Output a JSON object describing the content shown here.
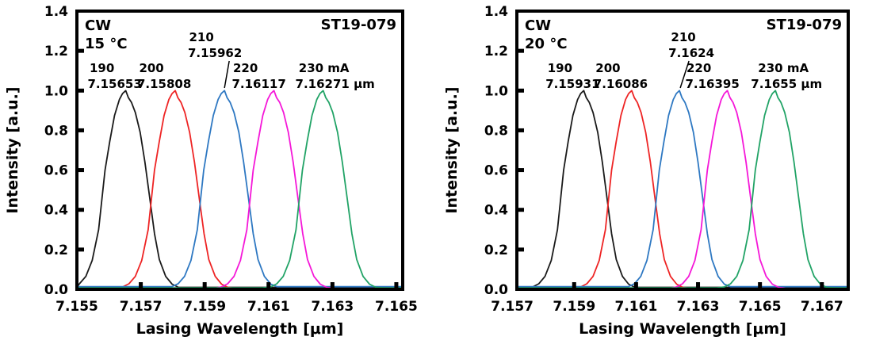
{
  "page": {
    "background": "#ffffff"
  },
  "peak_profile": [
    [
      -0.0019,
      0.004
    ],
    [
      -0.00165,
      0.012
    ],
    [
      -0.00145,
      0.028
    ],
    [
      -0.00125,
      0.065
    ],
    [
      -0.00105,
      0.145
    ],
    [
      -0.00085,
      0.3
    ],
    [
      -0.00065,
      0.6
    ],
    [
      -0.0005,
      0.745
    ],
    [
      -0.00035,
      0.875
    ],
    [
      -0.0002,
      0.955
    ],
    [
      -0.0001,
      0.985
    ],
    [
      0.0,
      1.0
    ],
    [
      8e-05,
      0.965
    ],
    [
      0.00018,
      0.94
    ],
    [
      0.0003,
      0.89
    ],
    [
      0.00045,
      0.79
    ],
    [
      0.0006,
      0.64
    ],
    [
      0.00075,
      0.46
    ],
    [
      0.0009,
      0.28
    ],
    [
      0.00105,
      0.15
    ],
    [
      0.00125,
      0.065
    ],
    [
      0.00145,
      0.026
    ],
    [
      0.00165,
      0.01
    ],
    [
      0.0019,
      0.004
    ]
  ],
  "chart_data": [
    {
      "type": "line",
      "mode": "CW",
      "temperature": "15 °C",
      "device": "ST19-079",
      "xlabel": "Lasing Wavelength [μm]",
      "ylabel": "Intensity [a.u.]",
      "xlim": [
        7.155,
        7.1652
      ],
      "ylim": [
        0.0,
        1.4
      ],
      "x_ticks": [
        7.155,
        7.157,
        7.159,
        7.161,
        7.163,
        7.165
      ],
      "x_tick_labels": [
        "7.155",
        "7.157",
        "7.159",
        "7.161",
        "7.163",
        "7.165"
      ],
      "y_ticks": [
        0.0,
        0.2,
        0.4,
        0.6,
        0.8,
        1.0,
        1.2,
        1.4
      ],
      "y_tick_labels": [
        "0.0",
        "0.2",
        "0.4",
        "0.6",
        "0.8",
        "1.0",
        "1.2",
        "1.4"
      ],
      "series": [
        {
          "name": "190 mA",
          "color": "#1a1a1a",
          "peak_um": 7.15653,
          "peak_intensity": 1.0,
          "label": [
            "190",
            "7.15653"
          ]
        },
        {
          "name": "200 mA",
          "color": "#ee2424",
          "peak_um": 7.15808,
          "peak_intensity": 1.0,
          "label": [
            "200",
            "7.15808"
          ]
        },
        {
          "name": "210 mA",
          "color": "#2e78c2",
          "peak_um": 7.15962,
          "peak_intensity": 1.0,
          "label": [
            "210",
            "7.15962"
          ],
          "label_raised": true
        },
        {
          "name": "220 mA",
          "color": "#f517d8",
          "peak_um": 7.16117,
          "peak_intensity": 1.0,
          "label": [
            "220",
            "7.16117"
          ]
        },
        {
          "name": "230 mA",
          "color": "#21a366",
          "peak_um": 7.16271,
          "peak_intensity": 1.0,
          "label": [
            "230 mA",
            "7.16271 μm"
          ]
        }
      ]
    },
    {
      "type": "line",
      "mode": "CW",
      "temperature": "20 °C",
      "device": "ST19-079",
      "xlabel": "Lasing Wavelength [μm]",
      "ylabel": "Intensity [a.u.]",
      "xlim": [
        7.15715,
        7.16785
      ],
      "ylim": [
        0.0,
        1.4
      ],
      "x_ticks": [
        7.157,
        7.159,
        7.161,
        7.163,
        7.165,
        7.167
      ],
      "x_tick_labels": [
        "7.157",
        "7.159",
        "7.161",
        "7.163",
        "7.165",
        "7.167"
      ],
      "y_ticks": [
        0.0,
        0.2,
        0.4,
        0.6,
        0.8,
        1.0,
        1.2,
        1.4
      ],
      "y_tick_labels": [
        "0.0",
        "0.2",
        "0.4",
        "0.6",
        "0.8",
        "1.0",
        "1.2",
        "1.4"
      ],
      "series": [
        {
          "name": "190 mA",
          "color": "#1a1a1a",
          "peak_um": 7.15931,
          "peak_intensity": 1.0,
          "label": [
            "190",
            "7.15931"
          ]
        },
        {
          "name": "200 mA",
          "color": "#ee2424",
          "peak_um": 7.16086,
          "peak_intensity": 1.0,
          "label": [
            "200",
            "7.16086"
          ]
        },
        {
          "name": "210 mA",
          "color": "#2e78c2",
          "peak_um": 7.1624,
          "peak_intensity": 1.0,
          "label": [
            "210",
            "7.1624"
          ],
          "label_raised": true
        },
        {
          "name": "220 mA",
          "color": "#f517d8",
          "peak_um": 7.16395,
          "peak_intensity": 1.0,
          "label": [
            "220",
            "7.16395"
          ]
        },
        {
          "name": "230 mA",
          "color": "#21a366",
          "peak_um": 7.1655,
          "peak_intensity": 1.0,
          "label": [
            "230 mA",
            "7.1655 μm"
          ]
        }
      ]
    }
  ]
}
